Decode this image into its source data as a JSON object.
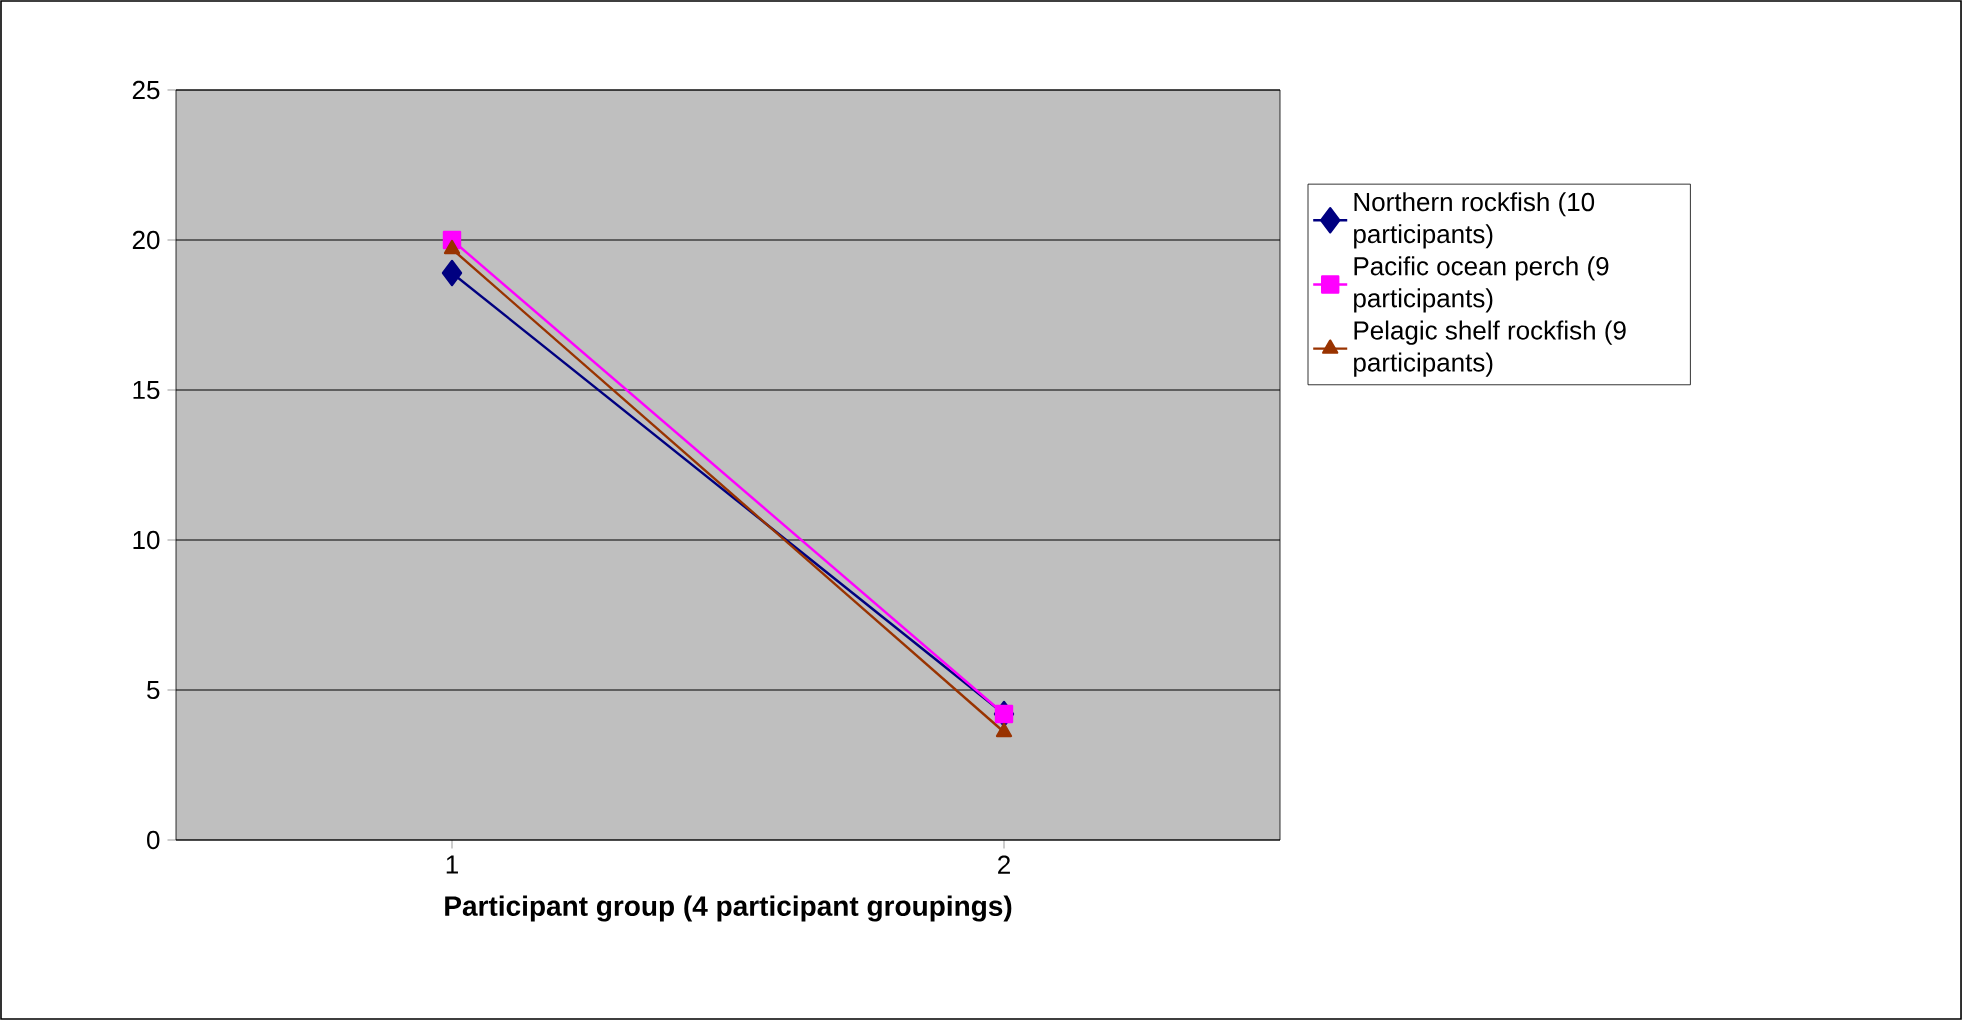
{
  "chart_data": {
    "type": "line",
    "xlabel": "Participant group (4 participant groupings)",
    "categories": [
      "1",
      "2"
    ],
    "series": [
      {
        "name": "Northern rockfish (10 participants)",
        "color": "#000080",
        "marker": "diamond",
        "values": [
          18.9,
          4.2
        ]
      },
      {
        "name": "Pacific ocean perch (9 participants)",
        "color": "#ff00ff",
        "marker": "square",
        "values": [
          20.0,
          4.2
        ]
      },
      {
        "name": "Pelagic shelf rockfish (9 participants)",
        "color": "#993300",
        "marker": "triangle",
        "values": [
          19.7,
          3.6
        ]
      }
    ],
    "ylim": [
      0,
      25
    ],
    "yticks": [
      0,
      5,
      10,
      15,
      20,
      25
    ],
    "grid": "y",
    "legend": "right"
  }
}
